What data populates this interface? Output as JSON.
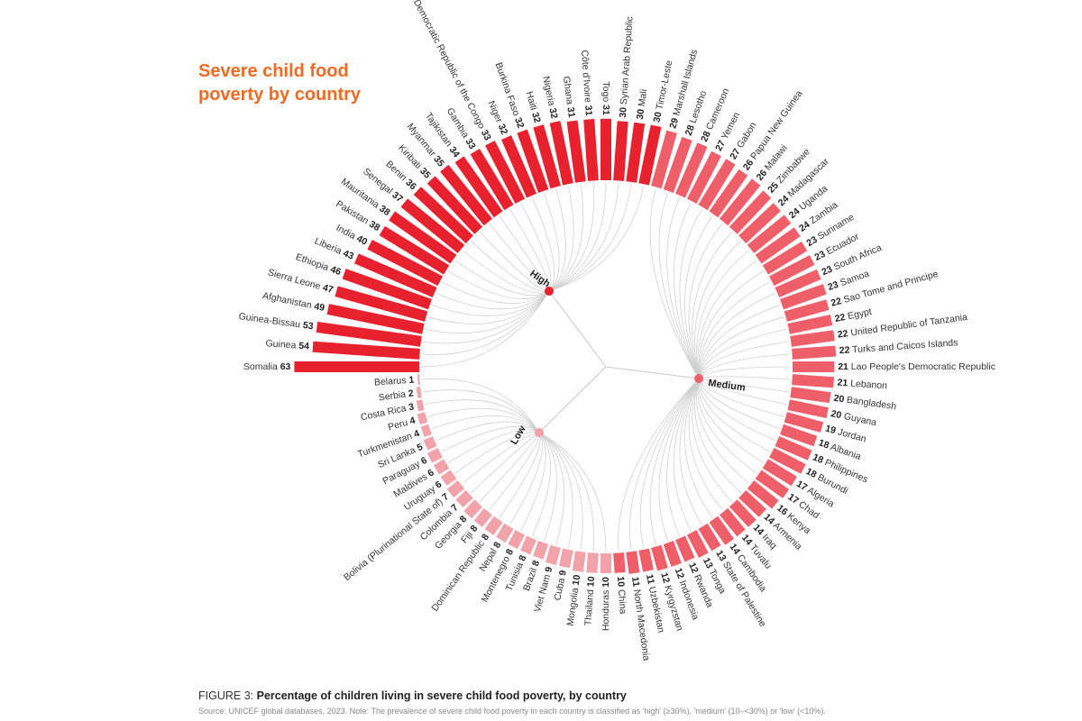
{
  "chart_data": {
    "type": "radial-bar",
    "title": "Severe child food poverty by country",
    "colors": {
      "High": "#e8212e",
      "Medium": "#ef5f6a",
      "Low": "#f2a3aa",
      "link": "#cfcfcf"
    },
    "groups": [
      "High",
      "Medium",
      "Low"
    ],
    "countries": [
      {
        "name": "Somalia",
        "value": 63,
        "group": "High"
      },
      {
        "name": "Guinea",
        "value": 54,
        "group": "High"
      },
      {
        "name": "Guinea-Bissau",
        "value": 53,
        "group": "High"
      },
      {
        "name": "Afghanistan",
        "value": 49,
        "group": "High"
      },
      {
        "name": "Sierra Leone",
        "value": 47,
        "group": "High"
      },
      {
        "name": "Ethiopia",
        "value": 46,
        "group": "High"
      },
      {
        "name": "Liberia",
        "value": 43,
        "group": "High"
      },
      {
        "name": "India",
        "value": 40,
        "group": "High"
      },
      {
        "name": "Pakistan",
        "value": 38,
        "group": "High"
      },
      {
        "name": "Mauritania",
        "value": 38,
        "group": "High"
      },
      {
        "name": "Senegal",
        "value": 37,
        "group": "High"
      },
      {
        "name": "Benin",
        "value": 36,
        "group": "High"
      },
      {
        "name": "Kiribati",
        "value": 35,
        "group": "High"
      },
      {
        "name": "Myanmar",
        "value": 35,
        "group": "High"
      },
      {
        "name": "Tajikistan",
        "value": 34,
        "group": "High"
      },
      {
        "name": "Gambia",
        "value": 33,
        "group": "High"
      },
      {
        "name": "Democratic Republic of the Congo",
        "value": 33,
        "group": "High"
      },
      {
        "name": "Niger",
        "value": 32,
        "group": "High"
      },
      {
        "name": "Burkina Faso",
        "value": 32,
        "group": "High"
      },
      {
        "name": "Haiti",
        "value": 32,
        "group": "High"
      },
      {
        "name": "Nigeria",
        "value": 32,
        "group": "High"
      },
      {
        "name": "Ghana",
        "value": 31,
        "group": "High"
      },
      {
        "name": "Côte d'Ivoire",
        "value": 31,
        "group": "High"
      },
      {
        "name": "Togo",
        "value": 31,
        "group": "High"
      },
      {
        "name": "Syrian Arab Republic",
        "value": 30,
        "group": "High"
      },
      {
        "name": "Mali",
        "value": 30,
        "group": "High"
      },
      {
        "name": "Timor-Leste",
        "value": 30,
        "group": "High"
      },
      {
        "name": "Marshall Islands",
        "value": 29,
        "group": "Medium"
      },
      {
        "name": "Lesotho",
        "value": 28,
        "group": "Medium"
      },
      {
        "name": "Cameroon",
        "value": 28,
        "group": "Medium"
      },
      {
        "name": "Yemen",
        "value": 27,
        "group": "Medium"
      },
      {
        "name": "Gabon",
        "value": 27,
        "group": "Medium"
      },
      {
        "name": "Papua New Guinea",
        "value": 26,
        "group": "Medium"
      },
      {
        "name": "Malawi",
        "value": 26,
        "group": "Medium"
      },
      {
        "name": "Zimbabwe",
        "value": 25,
        "group": "Medium"
      },
      {
        "name": "Madagascar",
        "value": 24,
        "group": "Medium"
      },
      {
        "name": "Uganda",
        "value": 24,
        "group": "Medium"
      },
      {
        "name": "Zambia",
        "value": 24,
        "group": "Medium"
      },
      {
        "name": "Suriname",
        "value": 23,
        "group": "Medium"
      },
      {
        "name": "Ecuador",
        "value": 23,
        "group": "Medium"
      },
      {
        "name": "South Africa",
        "value": 23,
        "group": "Medium"
      },
      {
        "name": "Samoa",
        "value": 23,
        "group": "Medium"
      },
      {
        "name": "Sao Tome and Principe",
        "value": 22,
        "group": "Medium"
      },
      {
        "name": "Egypt",
        "value": 22,
        "group": "Medium"
      },
      {
        "name": "United Republic of Tanzania",
        "value": 22,
        "group": "Medium"
      },
      {
        "name": "Turks and Caicos Islands",
        "value": 22,
        "group": "Medium"
      },
      {
        "name": "Lao People's Democratic Republic",
        "value": 21,
        "group": "Medium"
      },
      {
        "name": "Lebanon",
        "value": 21,
        "group": "Medium"
      },
      {
        "name": "Bangladesh",
        "value": 20,
        "group": "Medium"
      },
      {
        "name": "Guyana",
        "value": 20,
        "group": "Medium"
      },
      {
        "name": "Jordan",
        "value": 19,
        "group": "Medium"
      },
      {
        "name": "Albania",
        "value": 18,
        "group": "Medium"
      },
      {
        "name": "Philippines",
        "value": 18,
        "group": "Medium"
      },
      {
        "name": "Burundi",
        "value": 18,
        "group": "Medium"
      },
      {
        "name": "Algeria",
        "value": 17,
        "group": "Medium"
      },
      {
        "name": "Chad",
        "value": 17,
        "group": "Medium"
      },
      {
        "name": "Kenya",
        "value": 16,
        "group": "Medium"
      },
      {
        "name": "Armenia",
        "value": 14,
        "group": "Medium"
      },
      {
        "name": "Iraq",
        "value": 14,
        "group": "Medium"
      },
      {
        "name": "Tuvalu",
        "value": 14,
        "group": "Medium"
      },
      {
        "name": "Cambodia",
        "value": 14,
        "group": "Medium"
      },
      {
        "name": "State of Palestine",
        "value": 13,
        "group": "Medium"
      },
      {
        "name": "Tonga",
        "value": 13,
        "group": "Medium"
      },
      {
        "name": "Rwanda",
        "value": 12,
        "group": "Medium"
      },
      {
        "name": "Indonesia",
        "value": 12,
        "group": "Medium"
      },
      {
        "name": "Kyrgyzstan",
        "value": 12,
        "group": "Medium"
      },
      {
        "name": "Uzbekistan",
        "value": 11,
        "group": "Medium"
      },
      {
        "name": "North Macedonia",
        "value": 11,
        "group": "Medium"
      },
      {
        "name": "China",
        "value": 10,
        "group": "Medium"
      },
      {
        "name": "Honduras",
        "value": 10,
        "group": "Low"
      },
      {
        "name": "Thailand",
        "value": 10,
        "group": "Low"
      },
      {
        "name": "Mongolia",
        "value": 10,
        "group": "Low"
      },
      {
        "name": "Cuba",
        "value": 9,
        "group": "Low"
      },
      {
        "name": "Viet Nam",
        "value": 9,
        "group": "Low"
      },
      {
        "name": "Brazil",
        "value": 8,
        "group": "Low"
      },
      {
        "name": "Tunisia",
        "value": 8,
        "group": "Low"
      },
      {
        "name": "Montenegro",
        "value": 8,
        "group": "Low"
      },
      {
        "name": "Nepal",
        "value": 8,
        "group": "Low"
      },
      {
        "name": "Dominican Republic",
        "value": 8,
        "group": "Low"
      },
      {
        "name": "Fiji",
        "value": 8,
        "group": "Low"
      },
      {
        "name": "Georgia",
        "value": 8,
        "group": "Low"
      },
      {
        "name": "Colombia",
        "value": 7,
        "group": "Low"
      },
      {
        "name": "Bolivia (Plurinational State of)",
        "value": 7,
        "group": "Low"
      },
      {
        "name": "Uruguay",
        "value": 6,
        "group": "Low"
      },
      {
        "name": "Maldives",
        "value": 6,
        "group": "Low"
      },
      {
        "name": "Paraguay",
        "value": 6,
        "group": "Low"
      },
      {
        "name": "Sri Lanka",
        "value": 5,
        "group": "Low"
      },
      {
        "name": "Turkmenistan",
        "value": 4,
        "group": "Low"
      },
      {
        "name": "Peru",
        "value": 4,
        "group": "Low"
      },
      {
        "name": "Costa Rica",
        "value": 3,
        "group": "Low"
      },
      {
        "name": "Serbia",
        "value": 2,
        "group": "Low"
      },
      {
        "name": "Belarus",
        "value": 1,
        "group": "Low"
      }
    ]
  },
  "caption": {
    "figure_label": "FIGURE 3:",
    "text": "Percentage of children living in severe child food poverty, by country",
    "source": "Source: UNICEF global databases, 2023. Note: The prevalence of severe child food poverty in each country is classified as 'high' (≥30%), 'medium' (10–<30%) or 'low' (<10%)."
  }
}
